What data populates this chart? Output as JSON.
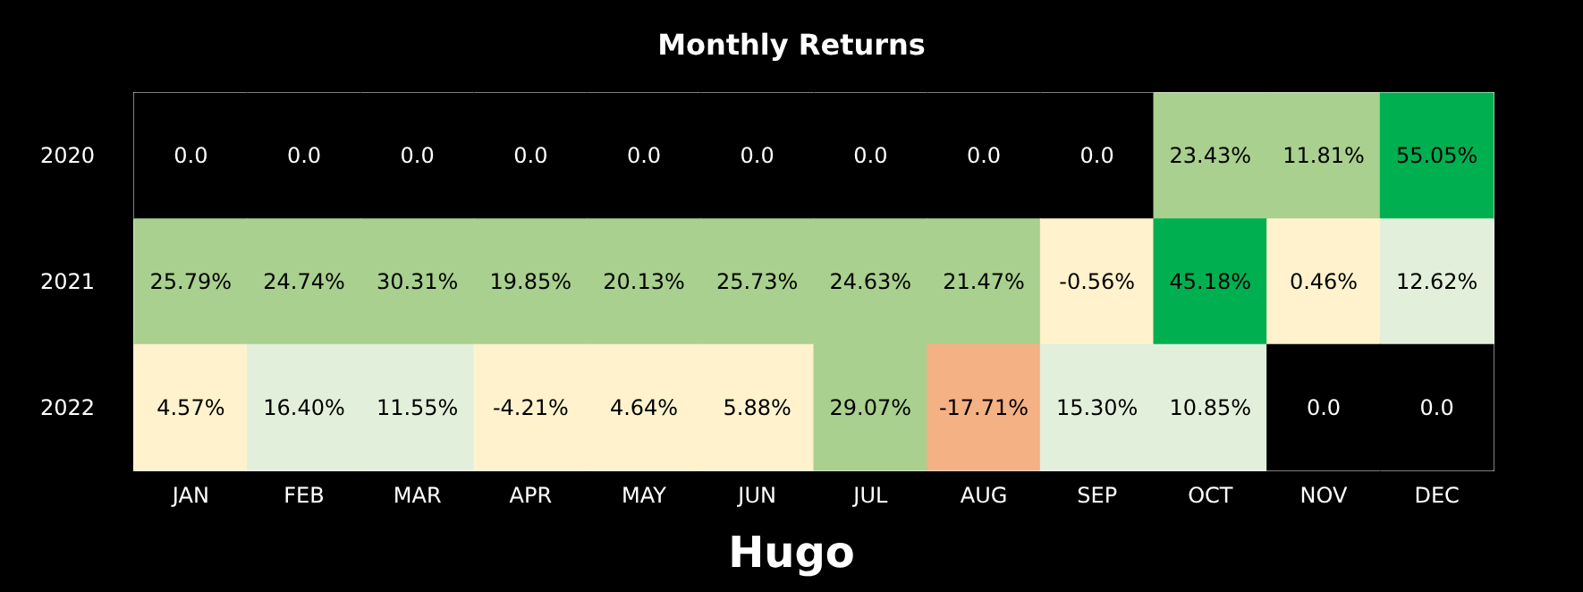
{
  "chart_data": {
    "type": "heatmap",
    "title": "Monthly Returns",
    "subtitle": "Hugo",
    "categories": [
      "JAN",
      "FEB",
      "MAR",
      "APR",
      "MAY",
      "JUN",
      "JUL",
      "AUG",
      "SEP",
      "OCT",
      "NOV",
      "DEC"
    ],
    "y_categories": [
      "2020",
      "2021",
      "2022"
    ],
    "cells": [
      [
        0,
        0,
        0,
        0,
        0,
        0,
        0,
        0,
        0,
        23.43,
        11.81,
        55.05
      ],
      [
        25.79,
        24.74,
        30.31,
        19.85,
        20.13,
        25.73,
        24.63,
        21.47,
        -0.56,
        45.18,
        0.46,
        12.62
      ],
      [
        4.57,
        16.4,
        11.55,
        -4.21,
        4.64,
        5.88,
        29.07,
        -17.71,
        15.3,
        10.85,
        0,
        0
      ]
    ],
    "cell_labels": [
      [
        "0.0",
        "0.0",
        "0.0",
        "0.0",
        "0.0",
        "0.0",
        "0.0",
        "0.0",
        "0.0",
        "23.43%",
        "11.81%",
        "55.05%"
      ],
      [
        "25.79%",
        "24.74%",
        "30.31%",
        "19.85%",
        "20.13%",
        "25.73%",
        "24.63%",
        "21.47%",
        "-0.56%",
        "45.18%",
        "0.46%",
        "12.62%"
      ],
      [
        "4.57%",
        "16.40%",
        "11.55%",
        "-4.21%",
        "4.64%",
        "5.88%",
        "29.07%",
        "-17.71%",
        "15.30%",
        "10.85%",
        "0.0",
        "0.0"
      ]
    ],
    "colors": [
      [
        "#000000",
        "#000000",
        "#000000",
        "#000000",
        "#000000",
        "#000000",
        "#000000",
        "#000000",
        "#000000",
        "#a9d08e",
        "#a9d08e",
        "#00b050"
      ],
      [
        "#a9d08e",
        "#a9d08e",
        "#a9d08e",
        "#a9d08e",
        "#a9d08e",
        "#a9d08e",
        "#a9d08e",
        "#a9d08e",
        "#fff2cc",
        "#00b050",
        "#fff2cc",
        "#e2efda"
      ],
      [
        "#fff2cc",
        "#e2efda",
        "#e2efda",
        "#fff2cc",
        "#fff2cc",
        "#fff2cc",
        "#a9d08e",
        "#f4b183",
        "#e2efda",
        "#e2efda",
        "#000000",
        "#000000"
      ]
    ]
  }
}
